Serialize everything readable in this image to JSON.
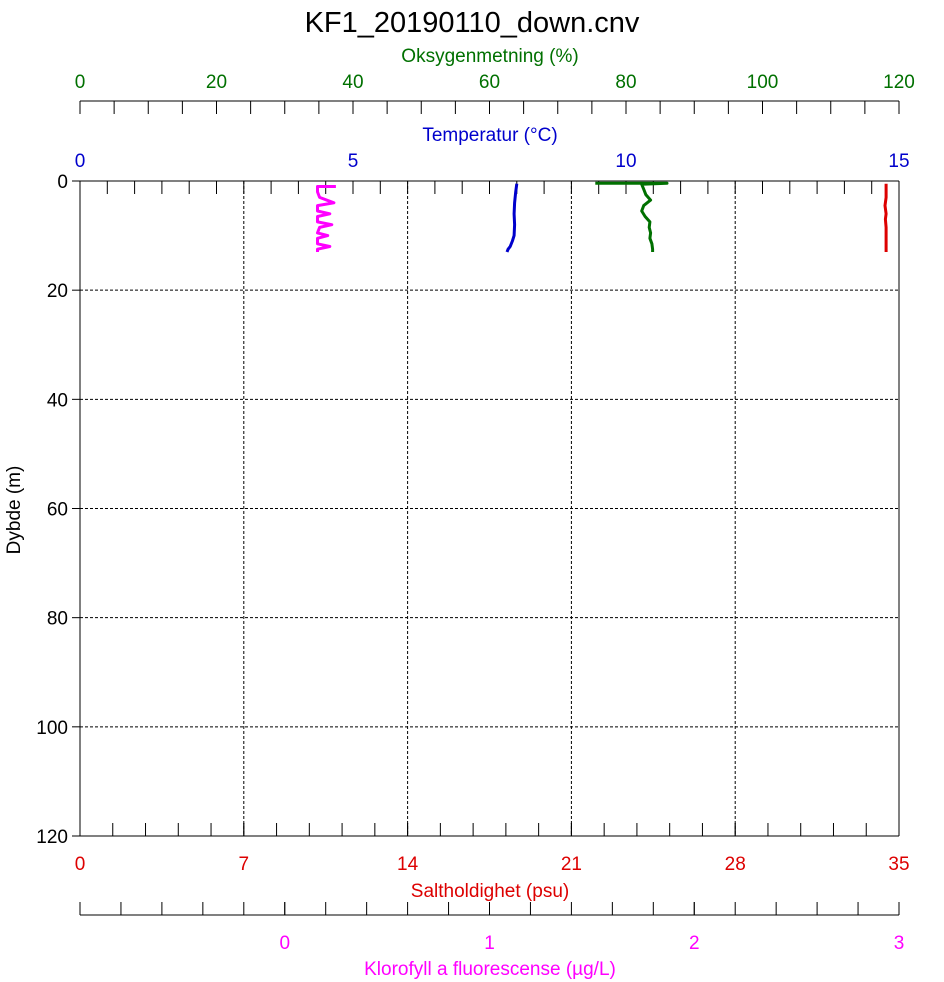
{
  "chart_data": {
    "type": "line",
    "title": "KF1_20190110_down.cnv",
    "ylabel": "Dybde (m)",
    "ylim": [
      120,
      0
    ],
    "yticks": [
      "0",
      "20",
      "40",
      "60",
      "80",
      "100",
      "120"
    ],
    "grid": true,
    "axes": {
      "oxygen": {
        "label": "Oksygenmetning (%)",
        "range": [
          0,
          120
        ],
        "ticks": [
          "0",
          "20",
          "40",
          "60",
          "80",
          "100",
          "120"
        ],
        "color": "#007000"
      },
      "temperature": {
        "label": "Temperatur (°C)",
        "range": [
          0,
          15
        ],
        "ticks": [
          "0",
          "5",
          "10",
          "15"
        ],
        "color": "#0000cc"
      },
      "salinity": {
        "label": "Saltholdighet (psu)",
        "range": [
          0,
          35
        ],
        "ticks": [
          "0",
          "7",
          "14",
          "21",
          "28",
          "35"
        ],
        "color": "#dd0000"
      },
      "chlorophyll": {
        "label": "Klorofyll a fluorescense (µg/L)",
        "range": [
          -1,
          3
        ],
        "ticks": [
          "0",
          "1",
          "2",
          "3"
        ],
        "color": "#ff00ff"
      }
    },
    "series": [
      {
        "axis": "chlorophyll",
        "color": "#ff00ff",
        "points": [
          [
            0.25,
            1
          ],
          [
            0.16,
            1
          ],
          [
            0.16,
            2
          ],
          [
            0.17,
            3
          ],
          [
            0.24,
            4
          ],
          [
            0.16,
            4.5
          ],
          [
            0.16,
            5.5
          ],
          [
            0.22,
            6
          ],
          [
            0.16,
            6.5
          ],
          [
            0.16,
            7.5
          ],
          [
            0.23,
            8
          ],
          [
            0.17,
            8.5
          ],
          [
            0.16,
            9.5
          ],
          [
            0.21,
            10
          ],
          [
            0.16,
            10.5
          ],
          [
            0.16,
            11.5
          ],
          [
            0.22,
            12
          ],
          [
            0.16,
            12.5
          ],
          [
            0.16,
            13
          ]
        ]
      },
      {
        "axis": "temperature",
        "color": "#0000cc",
        "points": [
          [
            8.0,
            0.5
          ],
          [
            7.98,
            2
          ],
          [
            7.96,
            4
          ],
          [
            7.95,
            6
          ],
          [
            7.96,
            8
          ],
          [
            7.95,
            10
          ],
          [
            7.92,
            11
          ],
          [
            7.88,
            12
          ],
          [
            7.84,
            12.5
          ],
          [
            7.82,
            13
          ]
        ]
      },
      {
        "axis": "oxygen",
        "color": "#007000",
        "points": [
          [
            75.5,
            0.4
          ],
          [
            86,
            0.4
          ],
          [
            82.3,
            0.6
          ],
          [
            82.6,
            1.5
          ],
          [
            82.9,
            2.5
          ],
          [
            83.6,
            3.5
          ],
          [
            82.6,
            4.5
          ],
          [
            82.3,
            5.5
          ],
          [
            82.8,
            6.5
          ],
          [
            83.5,
            7.5
          ],
          [
            83.4,
            8.5
          ],
          [
            83.6,
            9.5
          ],
          [
            83.5,
            10.5
          ],
          [
            83.8,
            11.5
          ],
          [
            83.9,
            12.5
          ],
          [
            83.9,
            13
          ]
        ]
      },
      {
        "axis": "salinity",
        "color": "#dd0000",
        "points": [
          [
            34.45,
            0.5
          ],
          [
            34.45,
            3
          ],
          [
            34.4,
            4.5
          ],
          [
            34.45,
            6
          ],
          [
            34.42,
            7
          ],
          [
            34.45,
            8.5
          ],
          [
            34.45,
            10
          ],
          [
            34.45,
            13
          ]
        ]
      }
    ]
  }
}
